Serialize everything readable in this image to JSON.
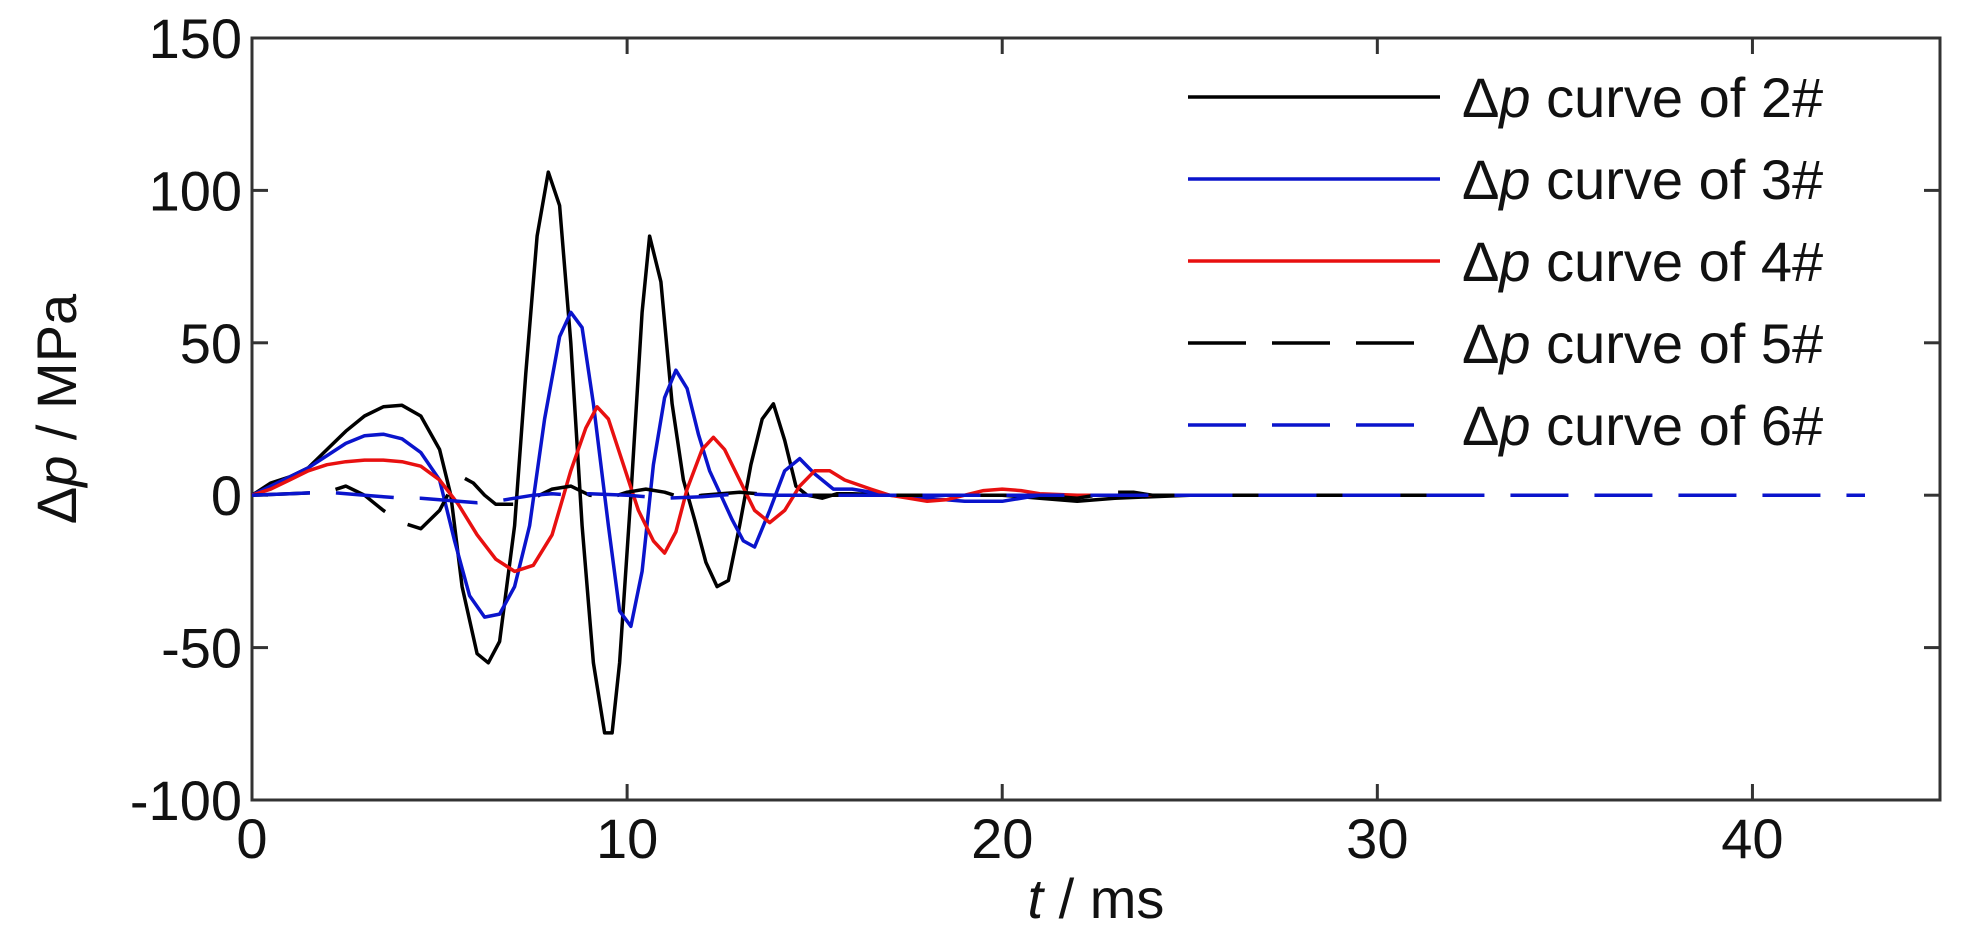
{
  "chart_data": {
    "type": "line",
    "title": "",
    "xlabel_var": "t",
    "xlabel_unit": " / ms",
    "ylabel_var": "Δp",
    "ylabel_unit": " / MPa",
    "xlim": [
      0,
      45
    ],
    "ylim": [
      -100,
      150
    ],
    "xticks": [
      0,
      10,
      20,
      30,
      40
    ],
    "xtick_labels": [
      "0",
      "10",
      "20",
      "30",
      "40"
    ],
    "yticks": [
      -100,
      -50,
      0,
      50,
      100,
      150
    ],
    "ytick_labels": [
      "-100",
      "-50",
      "0",
      "50",
      "100",
      "150"
    ],
    "grid": false,
    "legend_position": "top-right",
    "legend_prefix": "Δ",
    "legend_var": "p",
    "series": [
      {
        "name": " curve of 2#",
        "color": "#000000",
        "dash": "solid",
        "x": [
          0,
          0.5,
          1,
          1.5,
          2,
          2.5,
          3,
          3.5,
          4,
          4.5,
          5,
          5.3,
          5.6,
          6,
          6.3,
          6.6,
          7,
          7.3,
          7.6,
          7.9,
          8.2,
          8.5,
          8.8,
          9.1,
          9.4,
          9.6,
          9.8,
          10.1,
          10.4,
          10.6,
          10.9,
          11.2,
          11.5,
          11.8,
          12.1,
          12.4,
          12.7,
          13,
          13.3,
          13.6,
          13.9,
          14.2,
          14.5,
          14.8,
          15.2,
          15.6,
          16,
          17,
          18,
          19,
          20,
          21,
          22,
          23,
          25,
          28,
          32
        ],
        "y": [
          0,
          4,
          6,
          9,
          15,
          21,
          26,
          29,
          29.5,
          26,
          15,
          0,
          -30,
          -52,
          -55,
          -48,
          -10,
          40,
          85,
          106,
          95,
          50,
          -10,
          -55,
          -78,
          -78,
          -55,
          0,
          60,
          85,
          70,
          30,
          5,
          -8,
          -22,
          -30,
          -28,
          -10,
          10,
          25,
          30,
          18,
          3,
          0,
          -1,
          0.5,
          0.5,
          0,
          0,
          0,
          0,
          -1,
          -2,
          -1,
          0,
          0,
          0
        ]
      },
      {
        "name": " curve of 3#",
        "color": "#0a14cc",
        "dash": "solid",
        "x": [
          0,
          0.5,
          1,
          1.5,
          2,
          2.5,
          3,
          3.5,
          4,
          4.5,
          5,
          5.4,
          5.8,
          6.2,
          6.6,
          7,
          7.4,
          7.8,
          8.2,
          8.5,
          8.8,
          9.1,
          9.5,
          9.8,
          10.1,
          10.4,
          10.7,
          11,
          11.3,
          11.6,
          11.9,
          12.2,
          12.5,
          12.8,
          13.1,
          13.4,
          13.8,
          14.2,
          14.6,
          15,
          15.5,
          16,
          16.5,
          17,
          18,
          19,
          20,
          21,
          22,
          23,
          25,
          28,
          32
        ],
        "y": [
          0,
          3,
          6,
          9,
          13,
          17,
          19.5,
          20,
          18.5,
          14,
          5,
          -15,
          -33,
          -40,
          -39,
          -30,
          -10,
          25,
          52,
          60,
          55,
          30,
          -10,
          -38,
          -43,
          -25,
          10,
          32,
          41,
          35,
          20,
          8,
          0,
          -8,
          -15,
          -17,
          -5,
          8,
          12,
          7,
          2,
          2,
          1,
          0,
          -1,
          -2,
          -2,
          0,
          0,
          0,
          0,
          0,
          0
        ]
      },
      {
        "name": " curve of 4#",
        "color": "#e81010",
        "dash": "solid",
        "x": [
          0,
          0.5,
          1,
          1.5,
          2,
          2.5,
          3,
          3.5,
          4,
          4.5,
          5,
          5.5,
          6,
          6.5,
          7,
          7.5,
          8,
          8.5,
          8.9,
          9.2,
          9.5,
          9.9,
          10.3,
          10.7,
          11,
          11.3,
          11.6,
          12,
          12.3,
          12.6,
          13,
          13.4,
          13.8,
          14.2,
          14.6,
          15,
          15.4,
          15.8,
          16.5,
          17,
          17.5,
          18,
          18.5,
          19,
          19.5,
          20,
          20.5,
          21,
          22,
          23,
          25
        ],
        "y": [
          0,
          2,
          5,
          8,
          10,
          11,
          11.5,
          11.5,
          11,
          9.5,
          5,
          -3,
          -13,
          -21,
          -25,
          -23,
          -13,
          8,
          22,
          29,
          25,
          10,
          -5,
          -15,
          -19,
          -12,
          2,
          15,
          19,
          15,
          5,
          -5,
          -9,
          -5,
          3,
          8,
          8,
          5,
          2,
          0,
          -1,
          -2,
          -1.5,
          0,
          1.5,
          2,
          1.5,
          0.5,
          0,
          0,
          0
        ]
      },
      {
        "name": " curve of 5#",
        "color": "#000000",
        "dash": "long",
        "x": [
          0,
          1,
          2,
          2.5,
          3,
          3.5,
          4,
          4.5,
          5,
          5.3,
          5.6,
          5.9,
          6.2,
          6.5,
          7,
          7.5,
          8,
          8.5,
          9,
          9.5,
          10,
          10.5,
          11,
          11.5,
          12,
          13,
          14,
          15,
          16,
          17,
          18,
          19,
          20,
          21,
          22,
          23,
          23.5,
          24,
          26,
          28,
          30,
          32
        ],
        "y": [
          0,
          0.5,
          1,
          3,
          0,
          -5,
          -9,
          -11,
          -5,
          2,
          6,
          4,
          0,
          -3,
          -3,
          -1,
          2,
          3,
          0,
          -1,
          1,
          2,
          1,
          -1,
          0,
          1,
          0,
          0,
          0,
          0,
          0,
          0,
          0,
          0,
          -1,
          1,
          1,
          0,
          0,
          0,
          0,
          0
        ]
      },
      {
        "name": " curve of 6#",
        "color": "#0a14cc",
        "dash": "long",
        "x": [
          0,
          1,
          2,
          3,
          3.5,
          4,
          4.5,
          5,
          5.5,
          6,
          6.5,
          7,
          7.5,
          8,
          8.5,
          9,
          10,
          11,
          12,
          13,
          14,
          16,
          18,
          20,
          25,
          30,
          35,
          40,
          43
        ],
        "y": [
          0,
          0.5,
          1,
          0,
          -0.5,
          -1,
          -1,
          -1.5,
          -2,
          -2.5,
          -2,
          -1,
          0,
          0.5,
          0,
          0.5,
          0,
          -1,
          -0.5,
          0.5,
          0,
          0,
          0,
          0,
          0,
          0,
          0,
          0,
          0
        ]
      }
    ]
  }
}
